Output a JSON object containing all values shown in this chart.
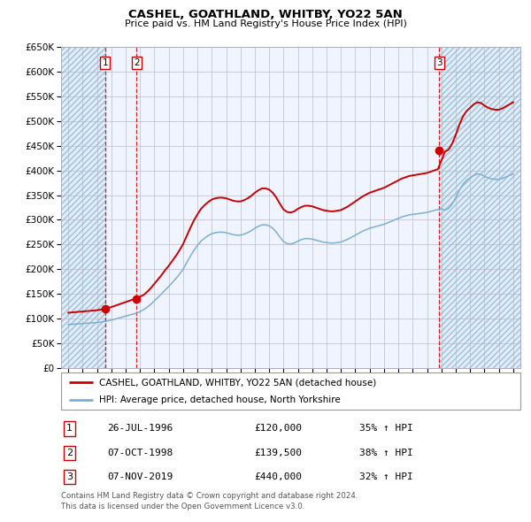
{
  "title": "CASHEL, GOATHLAND, WHITBY, YO22 5AN",
  "subtitle": "Price paid vs. HM Land Registry's House Price Index (HPI)",
  "legend_line1": "CASHEL, GOATHLAND, WHITBY, YO22 5AN (detached house)",
  "legend_line2": "HPI: Average price, detached house, North Yorkshire",
  "footnote1": "Contains HM Land Registry data © Crown copyright and database right 2024.",
  "footnote2": "This data is licensed under the Open Government Licence v3.0.",
  "sales": [
    {
      "num": 1,
      "date": "26-JUL-1996",
      "year": 1996.56,
      "price": 120000,
      "hpi_pct": "35% ↑ HPI"
    },
    {
      "num": 2,
      "date": "07-OCT-1998",
      "year": 1998.77,
      "price": 139500,
      "hpi_pct": "38% ↑ HPI"
    },
    {
      "num": 3,
      "date": "07-NOV-2019",
      "year": 2019.85,
      "price": 440000,
      "hpi_pct": "32% ↑ HPI"
    }
  ],
  "ylim": [
    0,
    650000
  ],
  "yticks": [
    0,
    50000,
    100000,
    150000,
    200000,
    250000,
    300000,
    350000,
    400000,
    450000,
    500000,
    550000,
    600000,
    650000
  ],
  "xlim_start": 1993.5,
  "xlim_end": 2025.5,
  "xtick_start": 1994,
  "xtick_end": 2025,
  "red_color": "#cc0000",
  "blue_color": "#7bafd4",
  "shade_color": "#ddeeff",
  "hatch_color": "#bbccdd",
  "grid_color": "#bbbbcc",
  "bg_color": "#f0f4ff"
}
